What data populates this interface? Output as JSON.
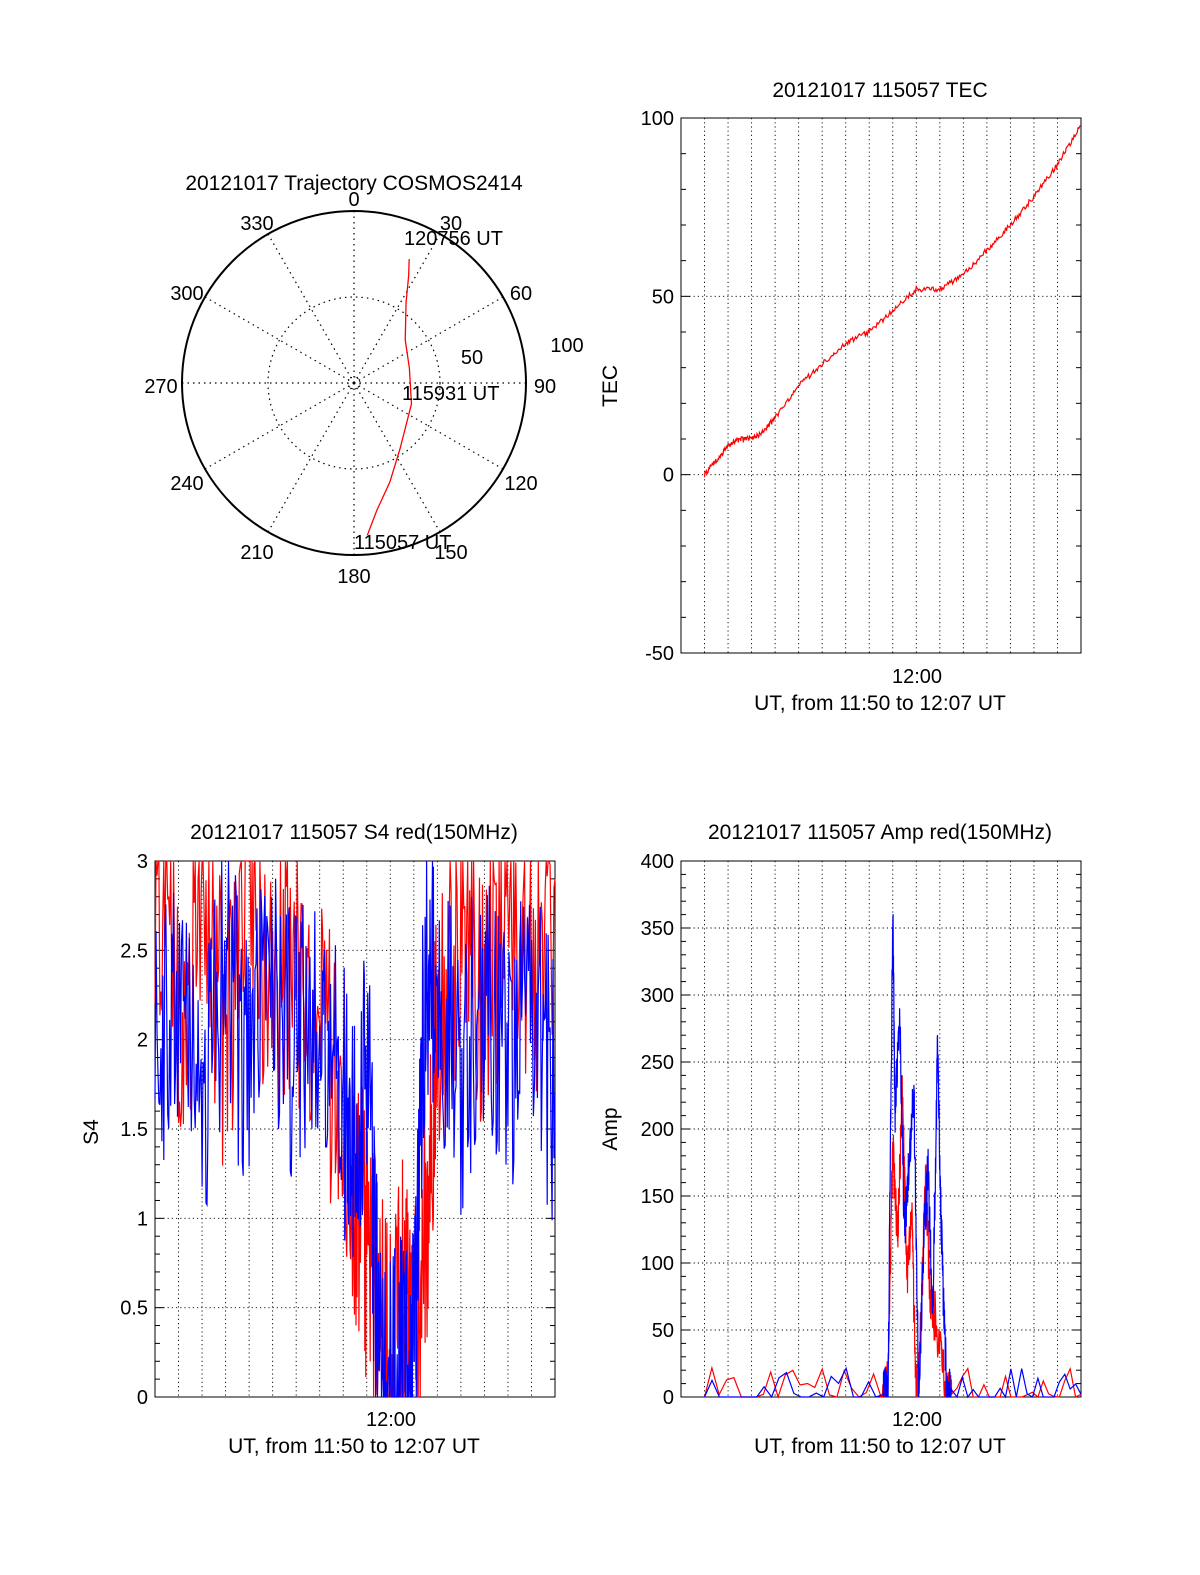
{
  "chart_data": [
    {
      "type": "polar-trajectory",
      "title": "20121017 Trajectory COSMOS2414",
      "azimuth_labels": [
        "0",
        "30",
        "60",
        "90",
        "120",
        "150",
        "180",
        "210",
        "240",
        "270",
        "300",
        "330"
      ],
      "radial_labels": [
        "50",
        "100"
      ],
      "color": "#ff0000",
      "trajectory": [
        {
          "az": 175,
          "el": 10
        },
        {
          "az": 170,
          "el": 22
        },
        {
          "az": 160,
          "el": 35
        },
        {
          "az": 145,
          "el": 48
        },
        {
          "az": 110,
          "el": 58
        },
        {
          "az": 75,
          "el": 60
        },
        {
          "az": 50,
          "el": 55
        },
        {
          "az": 33,
          "el": 40
        },
        {
          "az": 27,
          "el": 27
        },
        {
          "az": 24,
          "el": 19
        }
      ],
      "annotations": {
        "start": "115057 UT",
        "middle": "115931 UT",
        "end": "120756 UT"
      }
    },
    {
      "type": "line",
      "title": "20121017 115057 TEC",
      "xlabel": "UT, from 11:50 to 12:07 UT",
      "ylabel": "TEC",
      "x_tick_label": "12:00",
      "xlim_minutes": [
        0,
        17
      ],
      "ylim": [
        -50,
        100
      ],
      "y_ticks": [
        "100",
        "50",
        "0",
        "-50"
      ],
      "grid": true,
      "series": [
        {
          "color": "#ff0000",
          "x": [
            1,
            1.5,
            2,
            2.5,
            3,
            3.5,
            4,
            5,
            6,
            7,
            8,
            9,
            10,
            11,
            12,
            13,
            14,
            15,
            16,
            17
          ],
          "values": [
            0,
            4,
            8,
            10,
            10,
            12,
            16,
            25,
            31,
            37,
            40,
            46,
            52,
            52,
            56,
            63,
            70,
            78,
            87,
            98
          ]
        }
      ]
    },
    {
      "type": "line",
      "title": "20121017 115057 S4 red(150MHz)",
      "xlabel": "UT, from 11:50 to 12:07 UT",
      "ylabel": "S4",
      "x_tick_label": "12:00",
      "xlim_minutes": [
        0,
        17
      ],
      "ylim": [
        0,
        3
      ],
      "y_ticks": [
        "3",
        "2.5",
        "2",
        "1.5",
        "1",
        "0.5",
        "0"
      ],
      "grid": true,
      "series": [
        {
          "color": "#ff0000",
          "x": [
            0,
            1,
            2,
            3,
            4,
            5,
            6,
            7,
            8,
            8.5,
            9,
            9.5,
            10,
            10.5,
            11,
            11.5,
            12,
            13,
            14,
            15,
            16,
            17
          ],
          "values": [
            3,
            2.1,
            2.6,
            2.0,
            2.8,
            2.2,
            2.4,
            2.1,
            1.6,
            1.2,
            0.8,
            0.6,
            0.15,
            0.7,
            0.2,
            1.0,
            2.0,
            2.7,
            2.2,
            2.8,
            2.3,
            2.9
          ]
        },
        {
          "color": "#0000ff",
          "x": [
            0,
            1,
            2,
            3,
            4,
            5,
            6,
            7,
            8,
            8.5,
            9,
            9.5,
            10,
            10.5,
            11,
            11.5,
            12,
            13,
            14,
            15,
            16,
            17
          ],
          "values": [
            2.2,
            2.0,
            1.7,
            2.4,
            1.8,
            2.3,
            1.9,
            2.2,
            1.7,
            1.4,
            2.0,
            0.15,
            0.1,
            0.2,
            0.15,
            2.5,
            2.2,
            1.8,
            2.3,
            1.9,
            2.2,
            1.7
          ]
        }
      ]
    },
    {
      "type": "line",
      "title": "20121017 115057 Amp red(150MHz)",
      "xlabel": "UT, from 11:50 to 12:07 UT",
      "ylabel": "Amp",
      "x_tick_label": "12:00",
      "xlim_minutes": [
        0,
        17
      ],
      "ylim": [
        0,
        400
      ],
      "y_ticks": [
        "400",
        "350",
        "300",
        "250",
        "200",
        "150",
        "100",
        "50",
        "0"
      ],
      "grid": true,
      "series": [
        {
          "color": "#ff0000",
          "x": [
            1,
            8.5,
            8.8,
            9,
            9.2,
            9.4,
            9.6,
            9.8,
            10,
            10.2,
            10.4,
            10.6,
            10.8,
            11.3,
            11.5,
            17
          ],
          "values": [
            2,
            2,
            10,
            190,
            110,
            230,
            90,
            140,
            0,
            60,
            160,
            70,
            60,
            2,
            2,
            2
          ]
        },
        {
          "color": "#0000ff",
          "x": [
            1,
            8.6,
            8.8,
            9,
            9.1,
            9.3,
            9.5,
            9.7,
            9.9,
            10.1,
            10.3,
            10.5,
            10.7,
            10.9,
            11.1,
            11.3,
            11.5,
            17
          ],
          "values": [
            2,
            2,
            5,
            360,
            210,
            280,
            120,
            180,
            230,
            0,
            110,
            170,
            60,
            260,
            100,
            2,
            2,
            2
          ]
        }
      ]
    }
  ]
}
